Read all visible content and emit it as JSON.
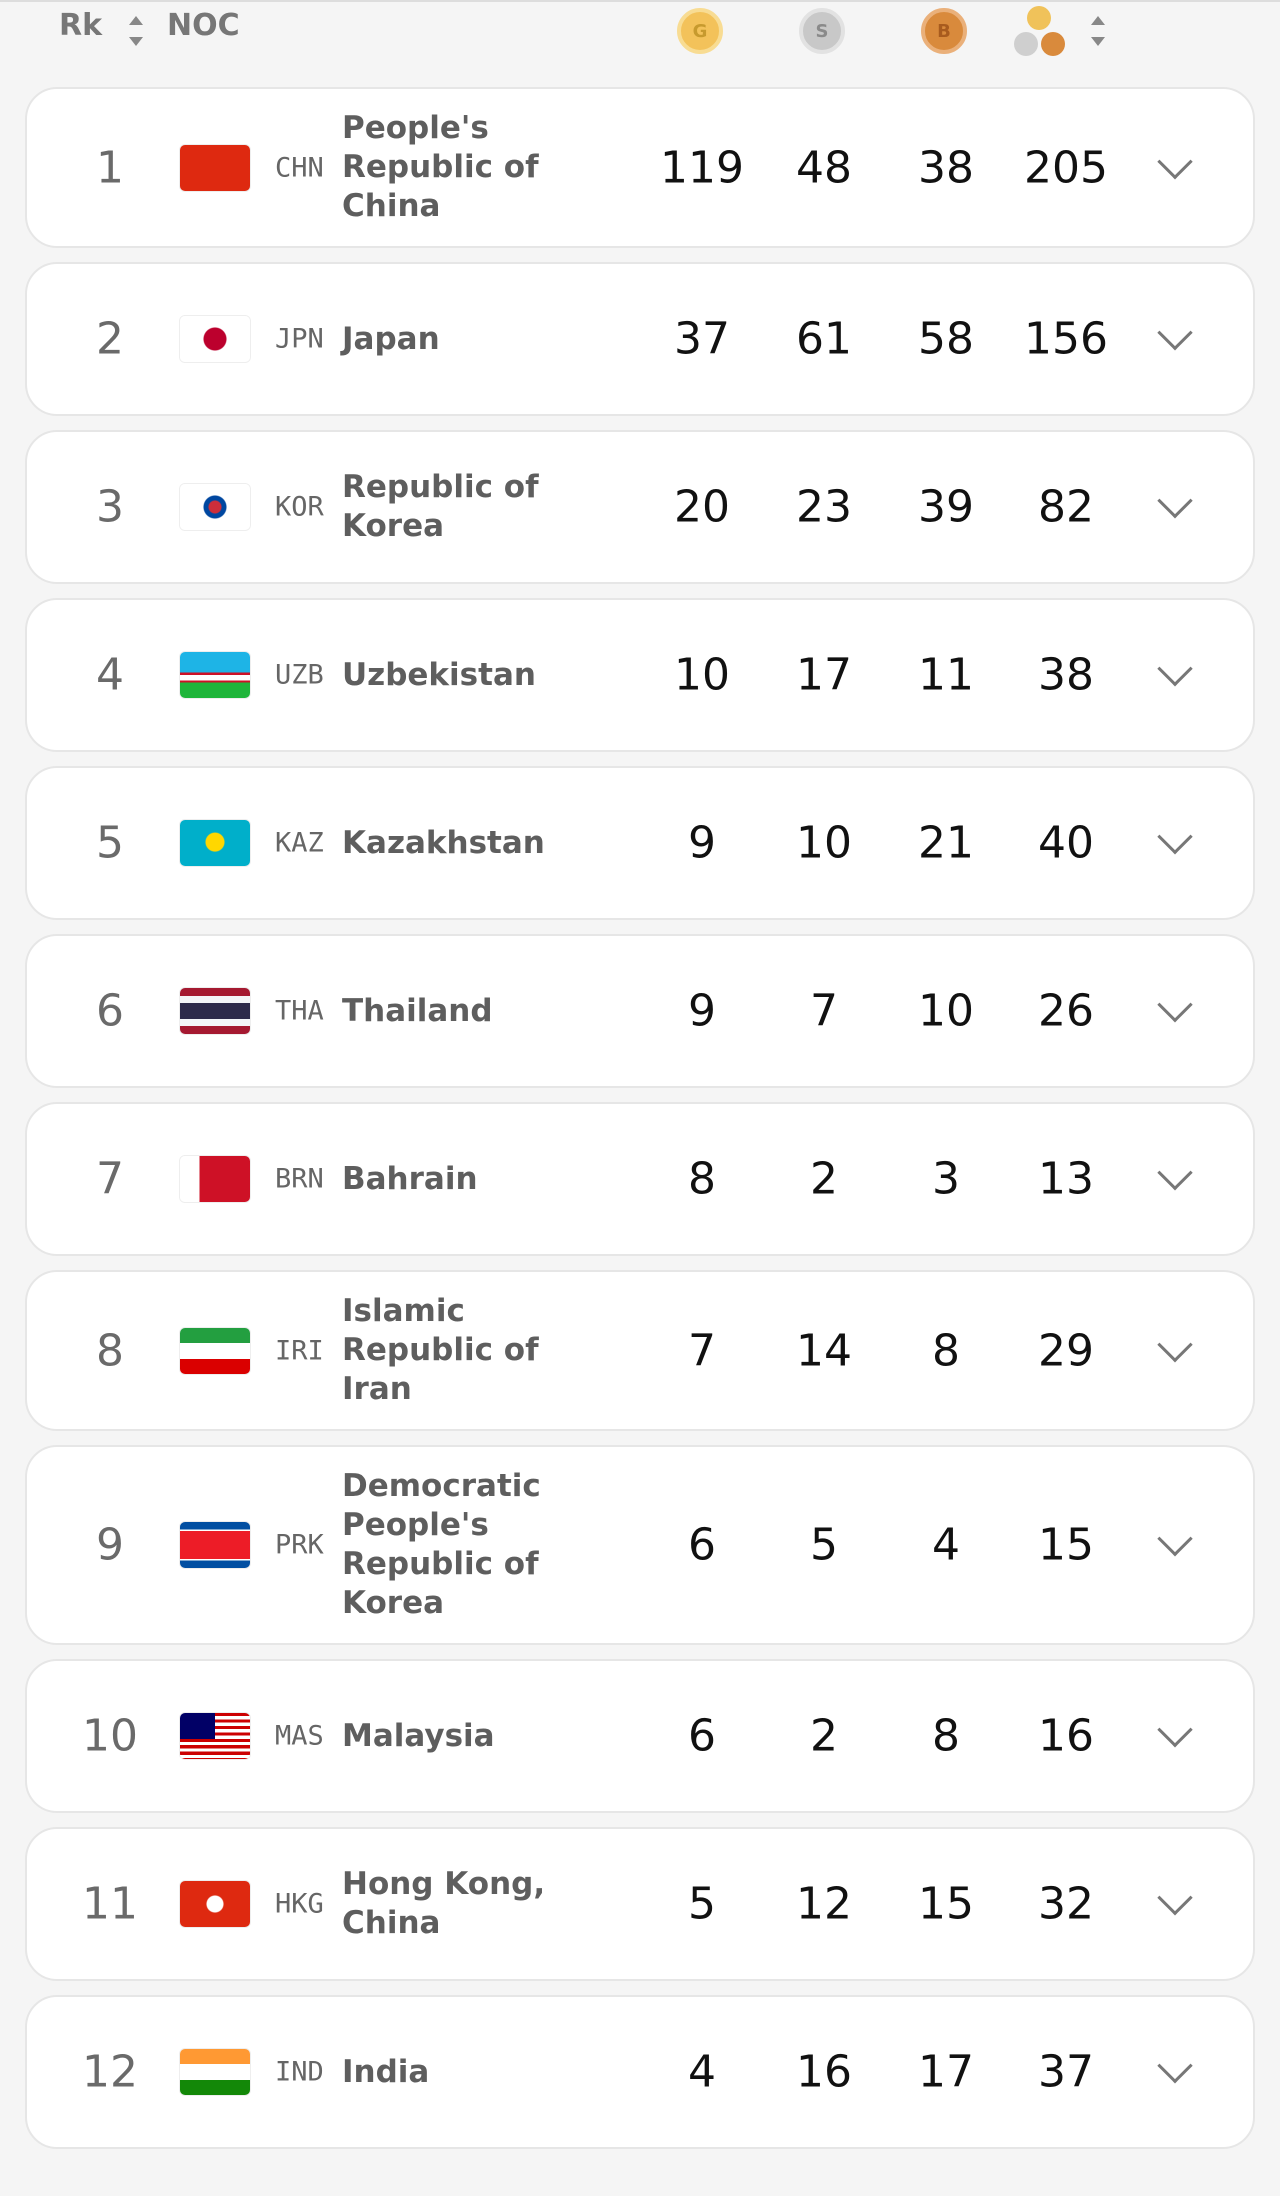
{
  "header": {
    "rank": "Rk",
    "noc": "NOC",
    "gold": "G",
    "silver": "S",
    "bronze": "B"
  },
  "rows": [
    [
      "1",
      "CHN",
      "People's Republic of China",
      119,
      48,
      38,
      205
    ],
    [
      "2",
      "JPN",
      "Japan",
      37,
      61,
      58,
      156
    ],
    [
      "3",
      "KOR",
      "Republic of Korea",
      20,
      23,
      39,
      82
    ],
    [
      "4",
      "UZB",
      "Uzbekistan",
      10,
      17,
      11,
      38
    ],
    [
      "5",
      "KAZ",
      "Kazakhstan",
      9,
      10,
      21,
      40
    ],
    [
      "6",
      "THA",
      "Thailand",
      9,
      7,
      10,
      26
    ],
    [
      "7",
      "BRN",
      "Bahrain",
      8,
      2,
      3,
      13
    ],
    [
      "8",
      "IRI",
      "Islamic Republic of Iran",
      7,
      14,
      8,
      29
    ],
    [
      "9",
      "PRK",
      "Democratic People's Republic of Korea",
      6,
      5,
      4,
      15
    ],
    [
      "10",
      "MAS",
      "Malaysia",
      6,
      2,
      8,
      16
    ],
    [
      "11",
      "HKG",
      "Hong Kong, China",
      5,
      12,
      15,
      32
    ],
    [
      "12",
      "IND",
      "India",
      4,
      16,
      17,
      37
    ]
  ]
}
